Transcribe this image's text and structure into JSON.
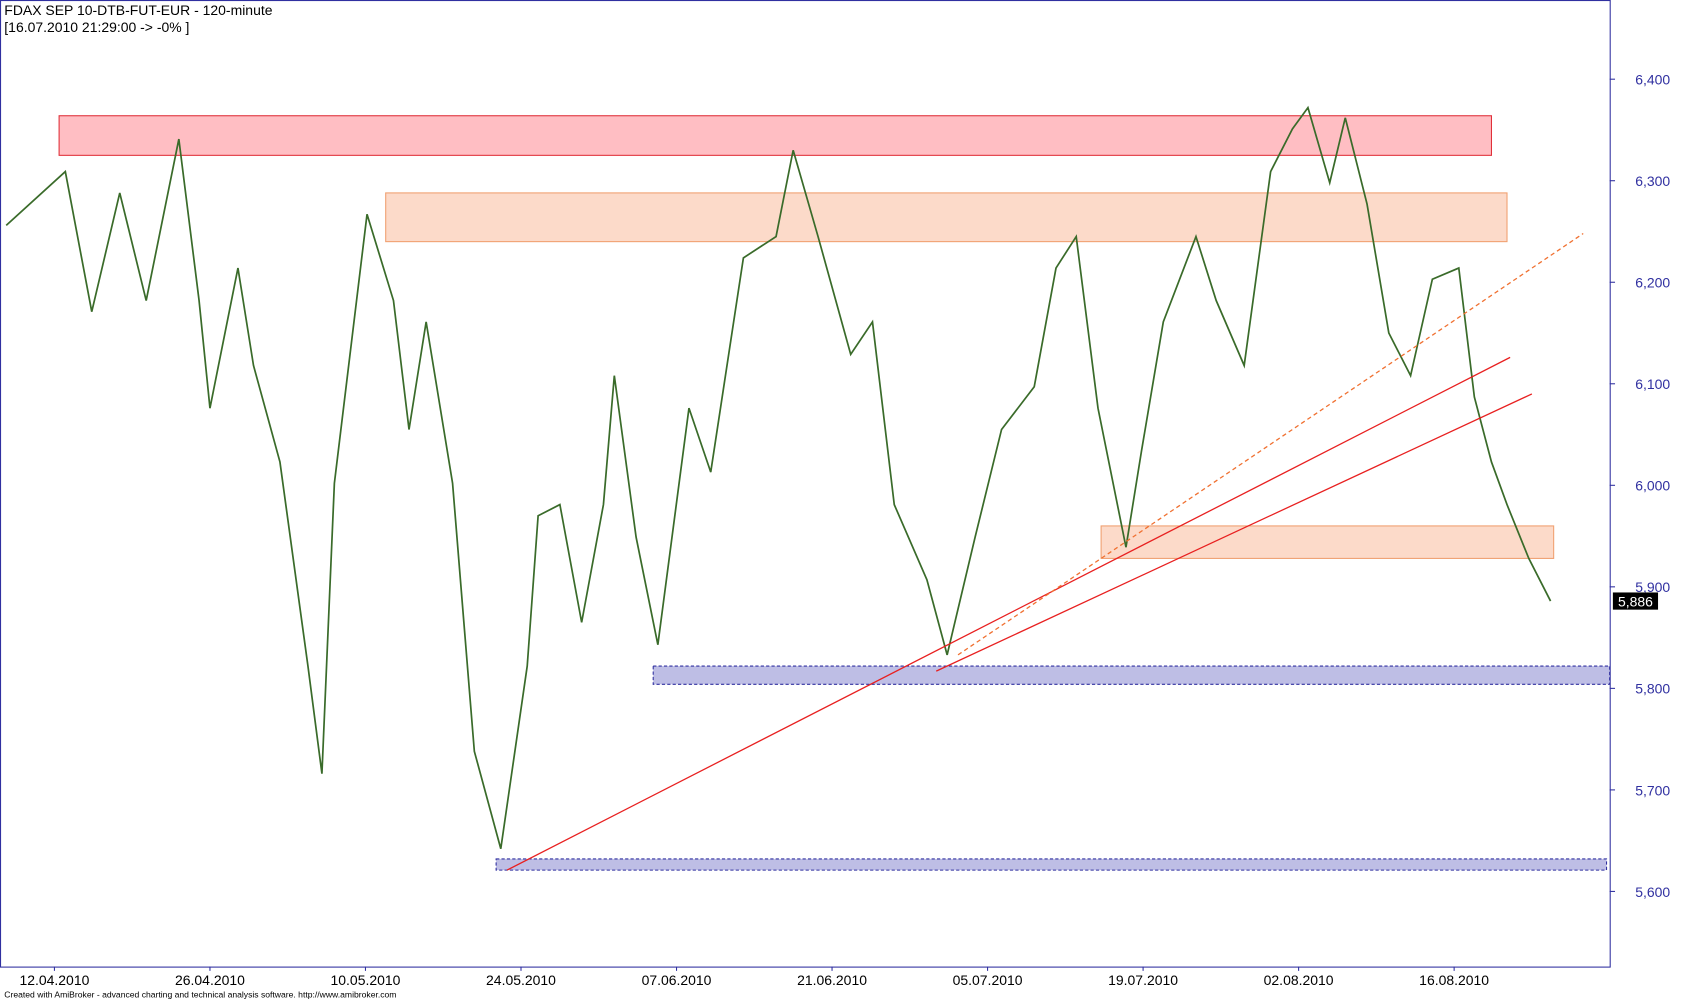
{
  "chart_data": {
    "type": "line",
    "title": "FDAX SEP 10-DTB-FUT-EUR - 120-minute",
    "subtitle": "[16.07.2010 21:29:00 -> -0% ]",
    "footer": "Created with AmiBroker - advanced charting and technical analysis software. http://www.amibroker.com",
    "x": [
      -3.1,
      0.7,
      2.4,
      4.2,
      5.9,
      8.0,
      9.3,
      10.0,
      11.8,
      12.8,
      14.5,
      16.3,
      17.2,
      18.0,
      20.1,
      21.8,
      22.8,
      23.9,
      25.6,
      27.0,
      28.7,
      30.4,
      31.1,
      32.5,
      33.9,
      35.3,
      36.0,
      37.4,
      38.8,
      40.8,
      42.2,
      44.3,
      46.4,
      47.5,
      49.1,
      51.2,
      52.6,
      54.0,
      56.1,
      57.4,
      59.2,
      60.9,
      63.0,
      64.4,
      65.7,
      67.1,
      68.9,
      69.9,
      71.3,
      73.4,
      74.7,
      76.5,
      78.2,
      79.6,
      80.6,
      82.0,
      83.0,
      84.4,
      85.8,
      87.2,
      88.6,
      90.3,
      91.3,
      92.4,
      93.4,
      94.8,
      96.2
    ],
    "series": [
      {
        "name": "FDAX",
        "color": "#3a6b2a",
        "values": [
          6256,
          6309,
          6171,
          6288,
          6182,
          6341,
          6182,
          6076,
          6214,
          6118,
          6023,
          5822,
          5716,
          6002,
          6267,
          6182,
          6055,
          6161,
          6002,
          5738,
          5642,
          5822,
          5970,
          5981,
          5865,
          5981,
          6108,
          5949,
          5843,
          6076,
          6013,
          6224,
          6245,
          6330,
          6245,
          6129,
          6161,
          5981,
          5907,
          5833,
          5949,
          6055,
          6097,
          6214,
          6245,
          6076,
          5939,
          6034,
          6161,
          6245,
          6182,
          6118,
          6309,
          6351,
          6372,
          6298,
          6362,
          6277,
          6150,
          6108,
          6203,
          6214,
          6087,
          6023,
          5981,
          5928,
          5886
        ]
      }
    ],
    "last_price": {
      "value": 5886,
      "label": "5,886"
    },
    "xlim": [
      -3.5,
      100
    ],
    "xticks": [
      {
        "value": 0,
        "label": "12.04.2010"
      },
      {
        "value": 10,
        "label": "26.04.2010"
      },
      {
        "value": 20,
        "label": "10.05.2010"
      },
      {
        "value": 30,
        "label": "24.05.2010"
      },
      {
        "value": 40,
        "label": "07.06.2010"
      },
      {
        "value": 50,
        "label": "21.06.2010"
      },
      {
        "value": 60,
        "label": "05.07.2010"
      },
      {
        "value": 70,
        "label": "19.07.2010"
      },
      {
        "value": 80,
        "label": "02.08.2010"
      },
      {
        "value": 90,
        "label": "16.08.2010"
      }
    ],
    "ylim": [
      5526,
      6478
    ],
    "yticks": [
      {
        "value": 5600,
        "label": "5,600"
      },
      {
        "value": 5700,
        "label": "5,700"
      },
      {
        "value": 5800,
        "label": "5,800"
      },
      {
        "value": 5900,
        "label": "5,900"
      },
      {
        "value": 6000,
        "label": "6,000"
      },
      {
        "value": 6100,
        "label": "6,100"
      },
      {
        "value": 6200,
        "label": "6,200"
      },
      {
        "value": 6300,
        "label": "6,300"
      },
      {
        "value": 6400,
        "label": "6,400"
      }
    ],
    "zones": [
      {
        "xlim": [
          0.3,
          92.4
        ],
        "ylim": [
          6325,
          6364
        ],
        "color": "#ffb3b8",
        "border": "#e0303a"
      },
      {
        "xlim": [
          21.3,
          93.4
        ],
        "ylim": [
          6240,
          6288
        ],
        "color": "#fbd3c0",
        "border": "#f0a070"
      },
      {
        "xlim": [
          67.3,
          96.4
        ],
        "ylim": [
          5928,
          5960
        ],
        "color": "#fbd3c0",
        "border": "#f0a070"
      },
      {
        "xlim": [
          38.5,
          100
        ],
        "ylim": [
          5804,
          5822
        ],
        "color": "#b3b3e0",
        "border": "#3030a0"
      },
      {
        "xlim": [
          28.4,
          99.8
        ],
        "ylim": [
          5621,
          5632
        ],
        "color": "#b3b3e0",
        "border": "#3030a0"
      }
    ],
    "trendlines": [
      {
        "x": [
          29.1,
          93.6
        ],
        "y": [
          5621,
          6126
        ],
        "color": "#e82020",
        "dashed": false
      },
      {
        "x": [
          56.7,
          95.0
        ],
        "y": [
          5817,
          6090
        ],
        "color": "#e82020",
        "dashed": false
      },
      {
        "x": [
          58.1,
          98.3
        ],
        "y": [
          5833,
          6248
        ],
        "color": "#f07030",
        "dashed": true
      }
    ]
  }
}
